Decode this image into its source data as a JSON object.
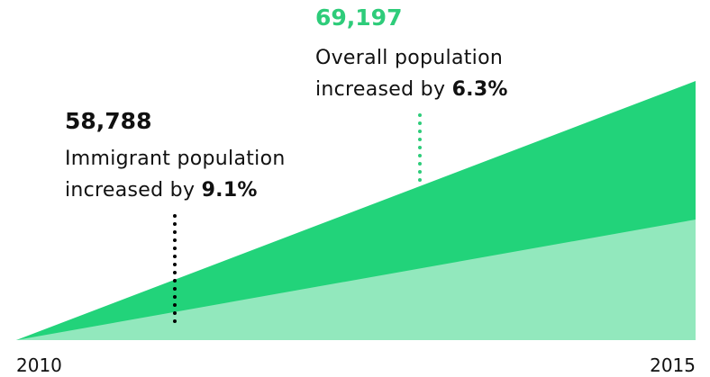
{
  "chart_data": {
    "type": "area",
    "x": [
      "2010",
      "2015"
    ],
    "xlabel": "",
    "ylabel": "",
    "grid": false,
    "series": [
      {
        "color": "#22d37a"
      },
      {
        "color": "#92e8bd"
      }
    ],
    "annotations": [
      {
        "value_label": "58,788",
        "line1": "Immigrant population",
        "line2_prefix": "increased by ",
        "line2_bold": "9.1%",
        "color": "#111111"
      },
      {
        "value_label": "69,197",
        "line1": "Overall population",
        "line2_prefix": "increased by ",
        "line2_bold": "6.3%",
        "color": "#2ecc7a"
      }
    ]
  }
}
